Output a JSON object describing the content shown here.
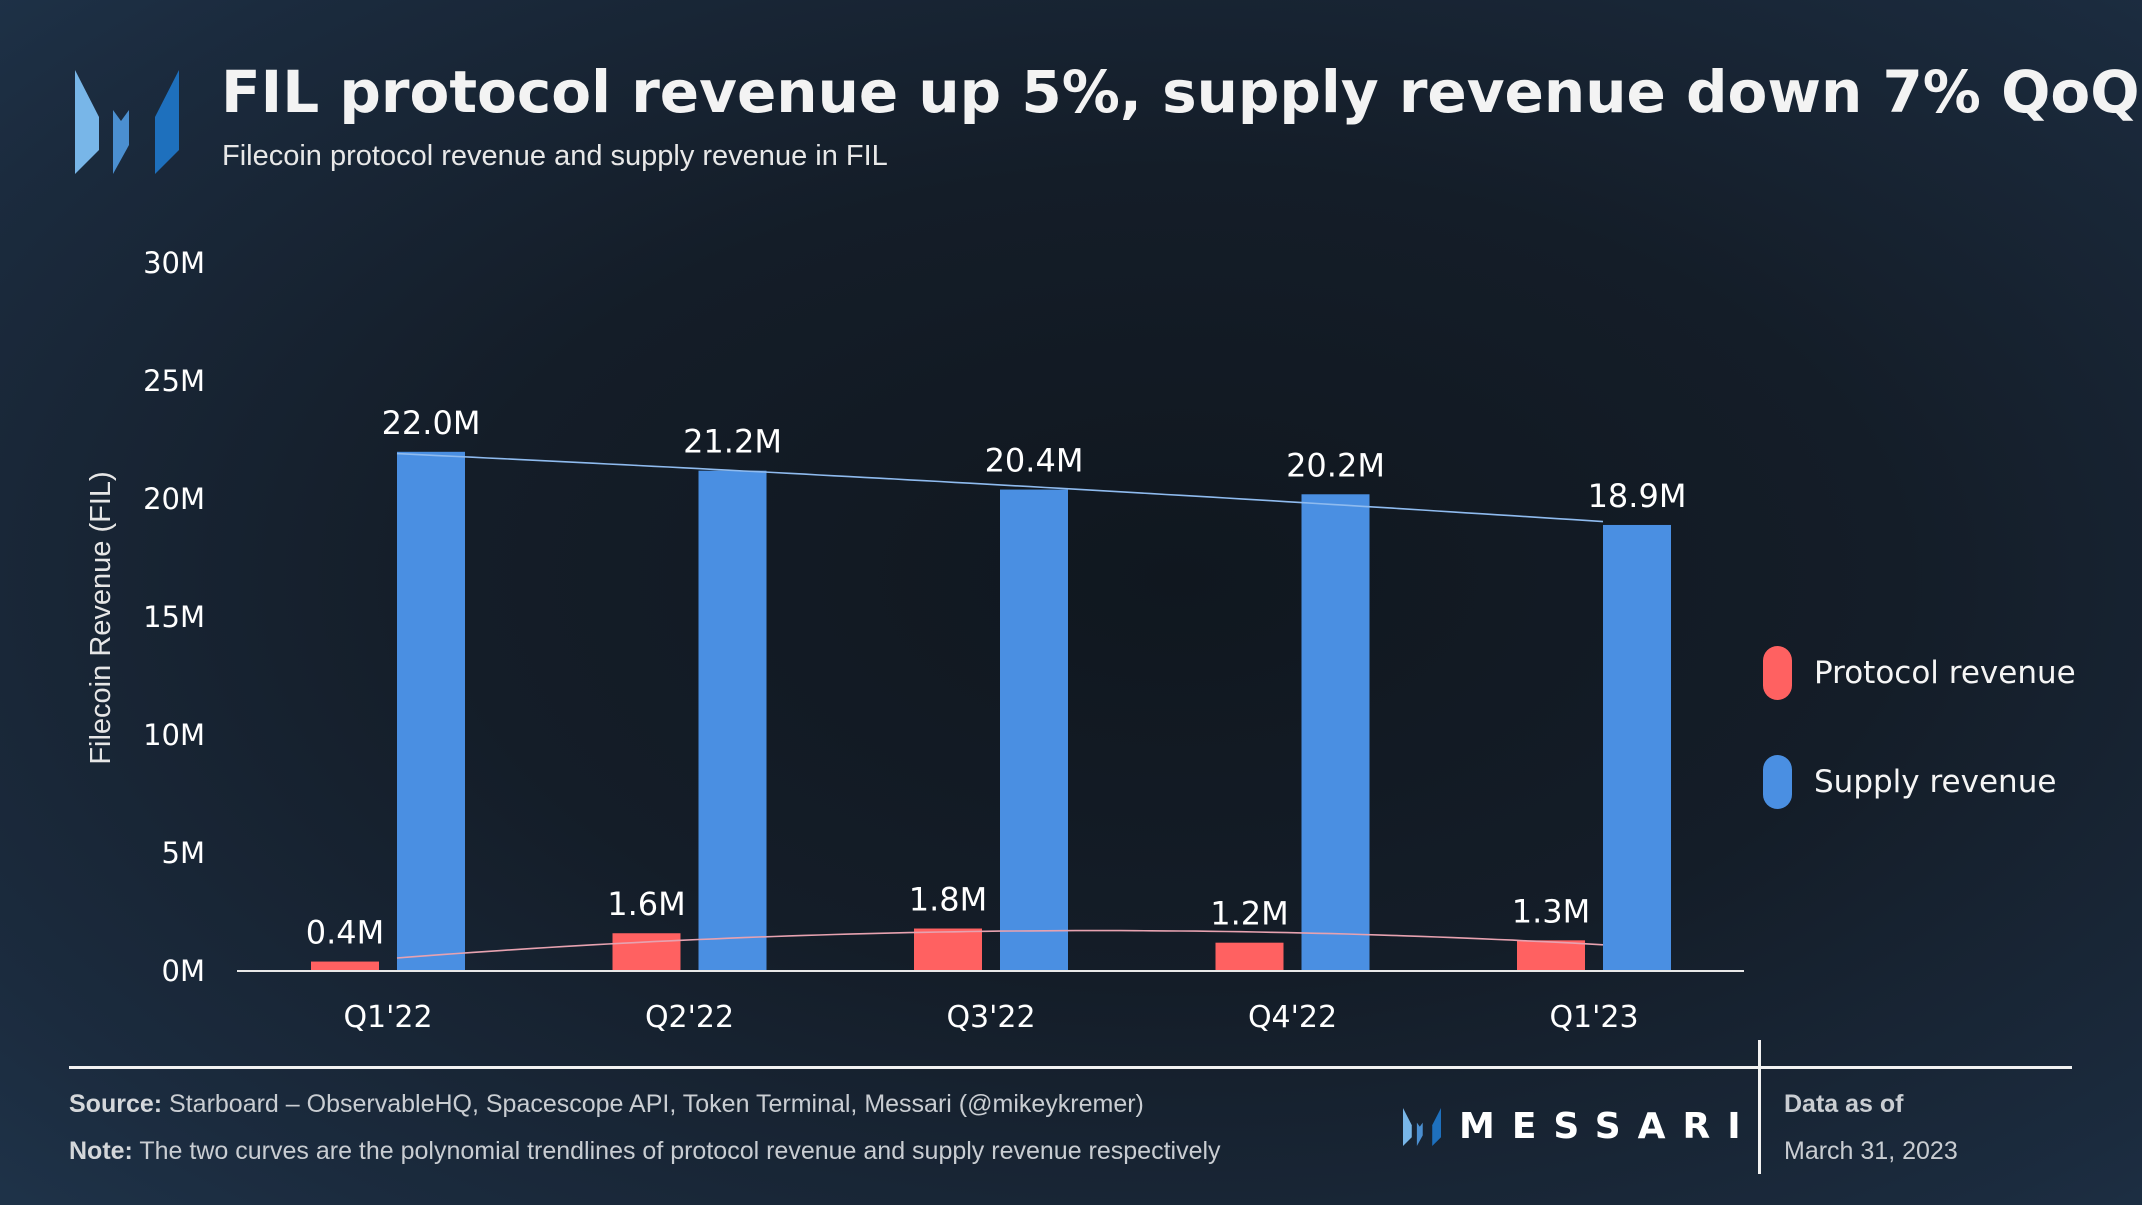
{
  "header": {
    "title": "FIL protocol revenue up 5%, supply revenue down 7% QoQ",
    "subtitle": "Filecoin protocol revenue and supply revenue in FIL",
    "logo_icon": "messari-m-logo-icon"
  },
  "colors": {
    "protocol": "#ff6161",
    "supply": "#4a8fe2",
    "protocol_trend": "#e7a2b0",
    "supply_trend": "#8fbbef",
    "logo_light": "#78b6e8",
    "logo_mid": "#4b8fd0",
    "logo_dark": "#1e70bd"
  },
  "chart_data": {
    "type": "bar",
    "title": "FIL protocol revenue up 5%, supply revenue down 7% QoQ",
    "subtitle": "Filecoin protocol revenue and supply revenue in FIL",
    "xlabel": "",
    "ylabel": "Filecoin Revenue (FIL)",
    "ylim": [
      0,
      30000000
    ],
    "yticks": [
      0,
      5000000,
      10000000,
      15000000,
      20000000,
      25000000,
      30000000
    ],
    "ytick_labels": [
      "0M",
      "5M",
      "10M",
      "15M",
      "20M",
      "25M",
      "30M"
    ],
    "grid": false,
    "legend_position": "right",
    "categories": [
      "Q1'22",
      "Q2'22",
      "Q3'22",
      "Q4'22",
      "Q1'23"
    ],
    "series": [
      {
        "name": "Protocol revenue",
        "values": [
          400000,
          1600000,
          1800000,
          1200000,
          1300000
        ],
        "labels": [
          "0.4M",
          "1.6M",
          "1.8M",
          "1.2M",
          "1.3M"
        ],
        "trendline": "polynomial"
      },
      {
        "name": "Supply revenue",
        "values": [
          22000000,
          21200000,
          20400000,
          20200000,
          18900000
        ],
        "labels": [
          "22.0M",
          "21.2M",
          "20.4M",
          "20.2M",
          "18.9M"
        ],
        "trendline": "polynomial"
      }
    ]
  },
  "footer": {
    "source_label": "Source:",
    "source_text": " Starboard – ObservableHQ, Spacescope API, Token Terminal, Messari (@mikeykremer)",
    "note_label": "Note:",
    "note_text": " The two curves are the polynomial trendlines of protocol revenue and supply revenue respectively",
    "brand": "MESSARI",
    "data_as_of_label": "Data as of",
    "data_as_of_date": "March 31, 2023"
  }
}
